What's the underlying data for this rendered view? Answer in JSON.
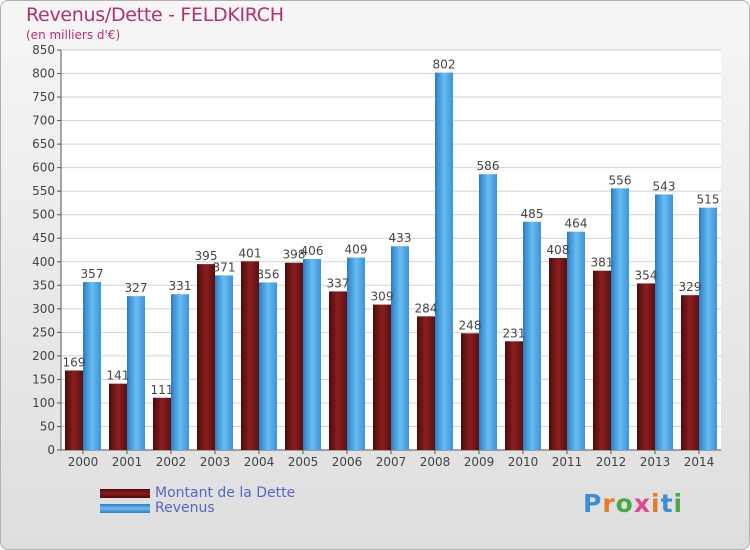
{
  "chart_data": {
    "type": "bar",
    "title": "Revenus/Dette - FELDKIRCH",
    "subtitle": "(en milliers d'€)",
    "categories": [
      "2000",
      "2001",
      "2002",
      "2003",
      "2004",
      "2005",
      "2006",
      "2007",
      "2008",
      "2009",
      "2010",
      "2011",
      "2012",
      "2013",
      "2014"
    ],
    "series": [
      {
        "name": "Montant de la Dette",
        "color": "#7a1515",
        "values": [
          169,
          141,
          111,
          395,
          401,
          398,
          337,
          309,
          284,
          248,
          231,
          408,
          381,
          354,
          329
        ]
      },
      {
        "name": "Revenus",
        "color": "#4aa3e6",
        "values": [
          357,
          327,
          331,
          371,
          356,
          406,
          409,
          433,
          802,
          586,
          485,
          464,
          556,
          543,
          515
        ]
      }
    ],
    "yticks": [
      0,
      50,
      100,
      150,
      200,
      250,
      300,
      350,
      400,
      450,
      500,
      550,
      600,
      650,
      700,
      750,
      800,
      850
    ],
    "ylim": [
      0,
      850
    ],
    "grid": true,
    "legend": "bottom-left"
  },
  "logo": {
    "text": "Proxiti"
  }
}
